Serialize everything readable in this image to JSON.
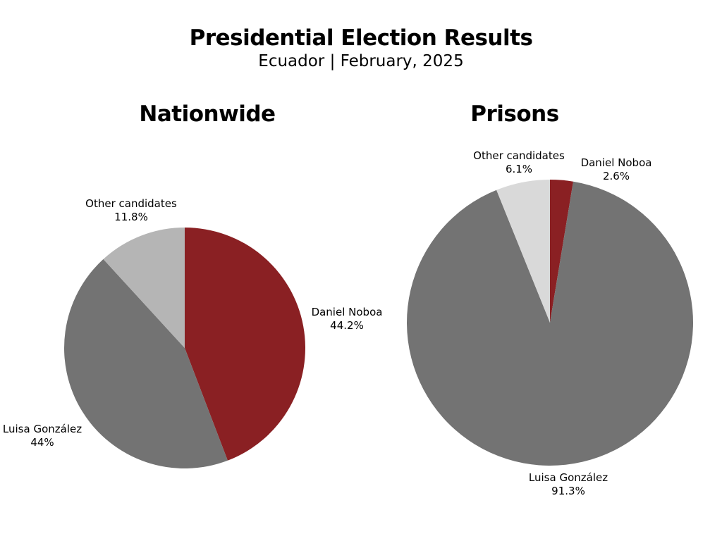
{
  "title": "Presidential Election Results",
  "subtitle": "Ecuador | February, 2025",
  "chart_data": [
    {
      "type": "pie",
      "title": "Nationwide",
      "slices": [
        {
          "name": "Daniel Noboa",
          "value": 44.2,
          "label": "44.2%",
          "color": "#8a2023"
        },
        {
          "name": "Luisa González",
          "value": 44,
          "label": "44%",
          "color": "#737373"
        },
        {
          "name": "Other candidates",
          "value": 11.8,
          "label": "11.8%",
          "color": "#b5b5b5"
        }
      ]
    },
    {
      "type": "pie",
      "title": "Prisons",
      "slices": [
        {
          "name": "Daniel Noboa",
          "value": 2.6,
          "label": "2.6%",
          "color": "#8a2023"
        },
        {
          "name": "Luisa González",
          "value": 91.3,
          "label": "91.3%",
          "color": "#737373"
        },
        {
          "name": "Other candidates",
          "value": 6.1,
          "label": "6.1%",
          "color": "#d9d9d9"
        }
      ]
    }
  ]
}
